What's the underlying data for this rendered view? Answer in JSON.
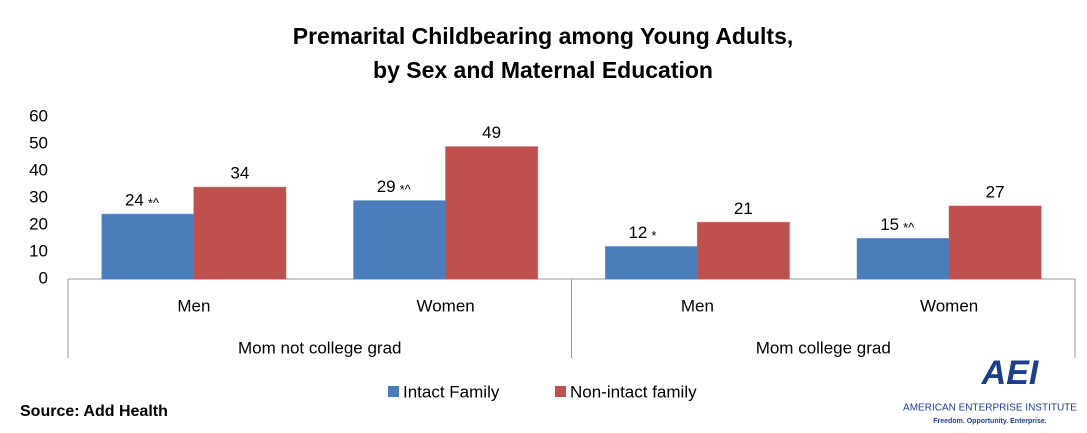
{
  "chart_data": {
    "type": "bar",
    "title": "Premarital Childbearing among Young Adults,",
    "subtitle": "by Sex and Maternal Education",
    "categories": [
      "Men",
      "Women",
      "Men",
      "Women"
    ],
    "groups": [
      "Mom not college grad",
      "Mom college grad"
    ],
    "series": [
      {
        "name": "Intact Family",
        "color": "#4a7ebb",
        "values": [
          24,
          29,
          12,
          15
        ],
        "notes": [
          "*^",
          "*^",
          "*",
          "*^"
        ]
      },
      {
        "name": "Non-intact family",
        "color": "#c0504d",
        "values": [
          34,
          49,
          21,
          27
        ]
      }
    ],
    "ylim": [
      0,
      60
    ],
    "yticks": [
      0,
      10,
      20,
      30,
      40,
      50,
      60
    ],
    "grid": false,
    "legend": "bottom",
    "source": "Source: Add Health",
    "logo": {
      "mark": "AEI",
      "name": "AMERICAN ENTERPRISE INSTITUTE",
      "tagline": "Freedom. Opportunity. Enterprise."
    }
  }
}
